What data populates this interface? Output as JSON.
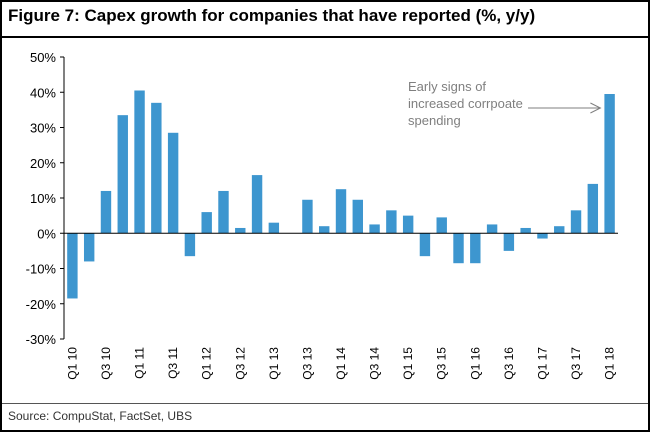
{
  "title": "Figure 7: Capex growth for companies that have reported (%, y/y)",
  "source": "Source: CompuStat, FactSet, UBS",
  "colors": {
    "bar": "#3d96cf",
    "annotation": "#7f7f7f",
    "axis": "#000000"
  },
  "chart_data": {
    "type": "bar",
    "categories": [
      "Q1 10",
      "Q2 10",
      "Q3 10",
      "Q4 10",
      "Q1 11",
      "Q2 11",
      "Q3 11",
      "Q4 11",
      "Q1 12",
      "Q2 12",
      "Q3 12",
      "Q4 12",
      "Q1 13",
      "Q2 13",
      "Q3 13",
      "Q4 13",
      "Q1 14",
      "Q2 14",
      "Q3 14",
      "Q4 14",
      "Q1 15",
      "Q2 15",
      "Q3 15",
      "Q4 15",
      "Q1 16",
      "Q2 16",
      "Q3 16",
      "Q4 16",
      "Q1 17",
      "Q2 17",
      "Q3 17",
      "Q4 17",
      "Q1 18"
    ],
    "tick_labels": [
      "Q1 10",
      "Q3 10",
      "Q1 11",
      "Q3 11",
      "Q1 12",
      "Q3 12",
      "Q1 13",
      "Q3 13",
      "Q1 14",
      "Q3 14",
      "Q1 15",
      "Q3 15",
      "Q1 16",
      "Q3 16",
      "Q1 17",
      "Q3 17",
      "Q1 18"
    ],
    "values": [
      -18.5,
      -8,
      12,
      33.5,
      40.5,
      37,
      28.5,
      -6.5,
      6,
      12,
      1.5,
      16.5,
      3,
      0,
      9.5,
      2,
      12.5,
      9.5,
      2.5,
      6.5,
      5,
      -6.5,
      4.5,
      -8.5,
      -8.5,
      2.5,
      -5,
      1.5,
      -1.5,
      2,
      6.5,
      14,
      39.5
    ],
    "ylim": [
      -30,
      50
    ],
    "yticks": [
      -30,
      -20,
      -10,
      0,
      10,
      20,
      30,
      40,
      50
    ],
    "ytick_format": "percent",
    "annotation": {
      "lines": [
        "Early signs of",
        "increased corrpoate",
        "spending"
      ],
      "points_to": "Q1 18"
    }
  }
}
